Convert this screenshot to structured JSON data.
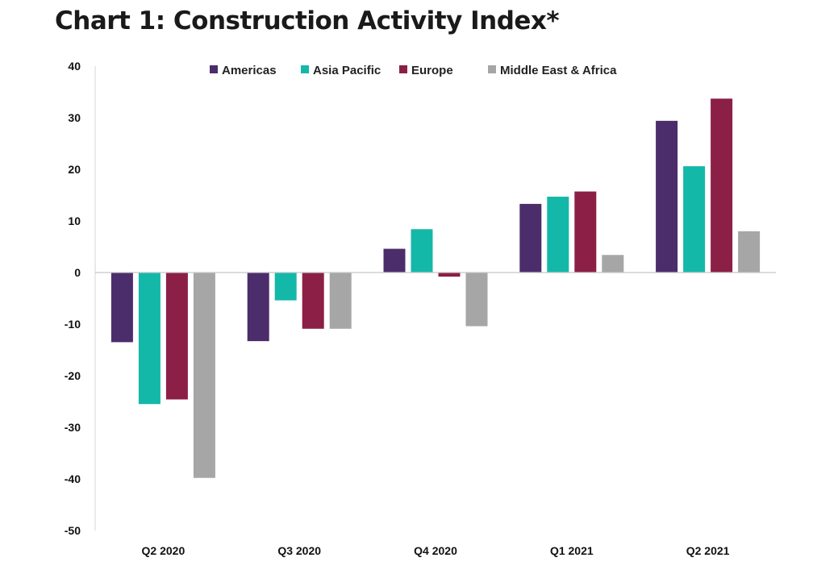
{
  "title": "Chart 1: Construction Activity Index*",
  "chart_data": {
    "type": "bar",
    "title": "Chart 1: Construction Activity Index*",
    "xlabel": "",
    "ylabel": "",
    "ylim": [
      -50,
      40
    ],
    "yticks": [
      40,
      30,
      20,
      10,
      0,
      -10,
      -20,
      -30,
      -40,
      -50
    ],
    "categories": [
      "Q2 2020",
      "Q3 2020",
      "Q4 2020",
      "Q1 2021",
      "Q2 2021"
    ],
    "legend_position": "top",
    "grid": false,
    "series": [
      {
        "name": "Americas",
        "color": "#4b2d6b",
        "values": [
          -13.5,
          -13.3,
          4.6,
          13.3,
          29.4
        ]
      },
      {
        "name": "Asia Pacific",
        "color": "#14b8a9",
        "values": [
          -25.5,
          -5.4,
          8.4,
          14.7,
          20.6
        ]
      },
      {
        "name": "Europe",
        "color": "#8c1f45",
        "values": [
          -24.6,
          -10.9,
          -0.8,
          15.7,
          33.7
        ]
      },
      {
        "name": "Middle East & Africa",
        "color": "#a6a6a6",
        "values": [
          -39.8,
          -10.9,
          -10.4,
          3.4,
          8.0
        ]
      }
    ]
  }
}
